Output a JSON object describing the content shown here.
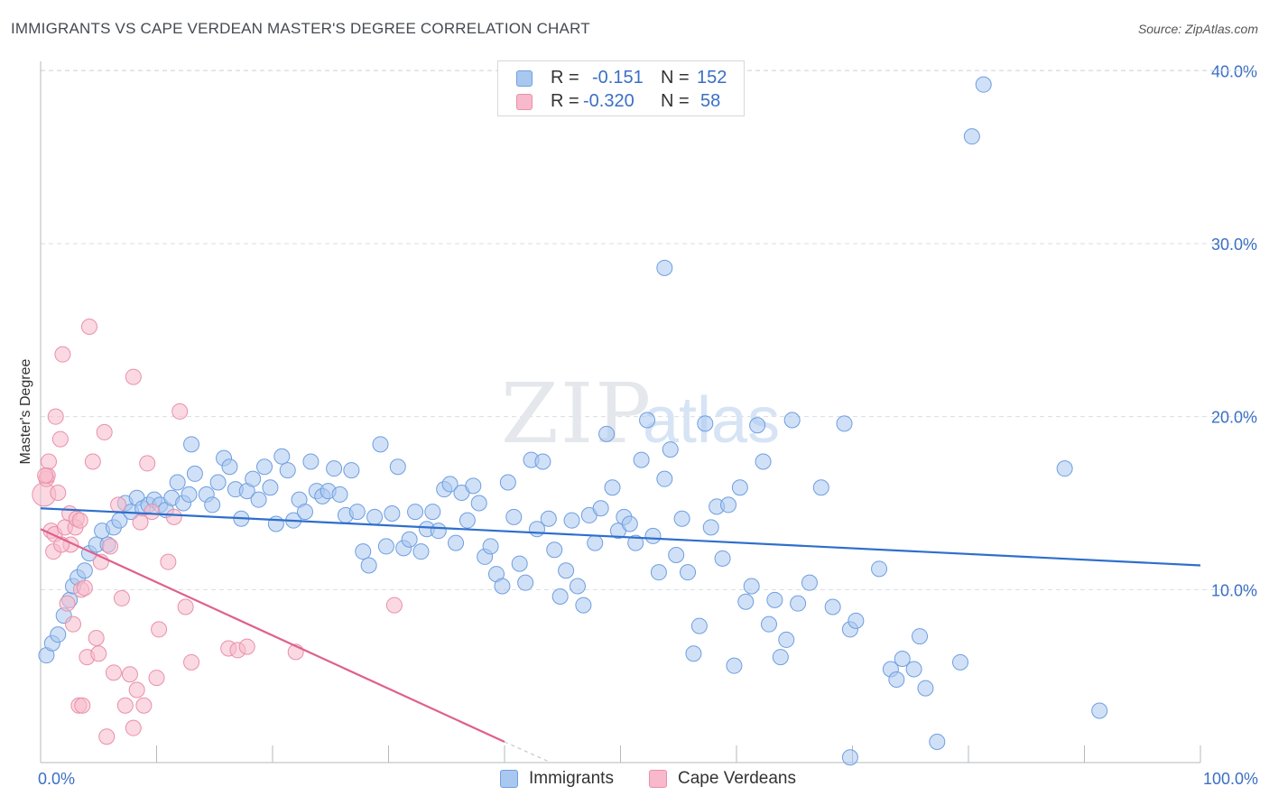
{
  "title": "IMMIGRANTS VS CAPE VERDEAN MASTER'S DEGREE CORRELATION CHART",
  "source": "Source: ZipAtlas.com",
  "watermark_main": "ZIP",
  "watermark_sub": "atlas",
  "colors": {
    "immigrants_fill": "#a9c8f0",
    "immigrants_stroke": "#6f9ee0",
    "immigrants_line": "#2e6fcc",
    "cape_fill": "#f7b9cb",
    "cape_stroke": "#e890aa",
    "cape_line": "#e0608a",
    "tick_label": "#3a6fc4",
    "grid": "#d8dde4"
  },
  "legend": {
    "r_label": "R =",
    "n_label": "N =",
    "immigrants_r": "-0.151",
    "immigrants_n": "152",
    "cape_r": "-0.320",
    "cape_n": "58"
  },
  "bottom_legend": {
    "immigrants": "Immigrants",
    "cape": "Cape Verdeans"
  },
  "chart_data": {
    "type": "scatter",
    "title": "IMMIGRANTS VS CAPE VERDEAN MASTER'S DEGREE CORRELATION CHART",
    "xlabel": "",
    "ylabel": "Master's Degree",
    "xlim": [
      0,
      100
    ],
    "ylim": [
      0,
      42
    ],
    "x_tick_labels": [
      "0.0%",
      "100.0%"
    ],
    "y_ticks": [
      10,
      20,
      30,
      40
    ],
    "y_tick_labels": [
      "10.0%",
      "20.0%",
      "30.0%",
      "40.0%"
    ],
    "grid": true,
    "series": [
      {
        "name": "Immigrants",
        "r": -0.151,
        "n": 152,
        "trend": {
          "x": [
            0,
            100
          ],
          "y": [
            14.7,
            11.4
          ]
        },
        "points": [
          [
            0.5,
            6.2
          ],
          [
            1.0,
            6.9
          ],
          [
            1.5,
            7.4
          ],
          [
            2.0,
            8.5
          ],
          [
            2.5,
            9.4
          ],
          [
            2.8,
            10.2
          ],
          [
            3.2,
            10.7
          ],
          [
            3.8,
            11.1
          ],
          [
            4.2,
            12.1
          ],
          [
            4.8,
            12.6
          ],
          [
            5.3,
            13.4
          ],
          [
            5.8,
            12.6
          ],
          [
            6.3,
            13.6
          ],
          [
            6.8,
            14.0
          ],
          [
            7.3,
            15.0
          ],
          [
            7.8,
            14.5
          ],
          [
            8.3,
            15.3
          ],
          [
            8.8,
            14.7
          ],
          [
            9.3,
            14.9
          ],
          [
            9.8,
            15.2
          ],
          [
            10.3,
            14.9
          ],
          [
            10.8,
            14.6
          ],
          [
            11.3,
            15.3
          ],
          [
            11.8,
            16.2
          ],
          [
            12.3,
            15.0
          ],
          [
            12.8,
            15.5
          ],
          [
            13.3,
            16.7
          ],
          [
            13.0,
            18.4
          ],
          [
            14.3,
            15.5
          ],
          [
            14.8,
            14.9
          ],
          [
            15.3,
            16.2
          ],
          [
            15.8,
            17.6
          ],
          [
            16.3,
            17.1
          ],
          [
            16.8,
            15.8
          ],
          [
            17.3,
            14.1
          ],
          [
            17.8,
            15.7
          ],
          [
            18.3,
            16.4
          ],
          [
            18.8,
            15.2
          ],
          [
            19.3,
            17.1
          ],
          [
            19.8,
            15.9
          ],
          [
            20.3,
            13.8
          ],
          [
            20.8,
            17.7
          ],
          [
            21.3,
            16.9
          ],
          [
            21.8,
            14.0
          ],
          [
            22.3,
            15.2
          ],
          [
            22.8,
            14.5
          ],
          [
            23.3,
            17.4
          ],
          [
            23.8,
            15.7
          ],
          [
            24.3,
            15.4
          ],
          [
            24.8,
            15.7
          ],
          [
            25.3,
            17.0
          ],
          [
            25.8,
            15.5
          ],
          [
            26.3,
            14.3
          ],
          [
            26.8,
            16.9
          ],
          [
            27.3,
            14.5
          ],
          [
            27.8,
            12.2
          ],
          [
            28.3,
            11.4
          ],
          [
            28.8,
            14.2
          ],
          [
            29.3,
            18.4
          ],
          [
            29.8,
            12.5
          ],
          [
            30.3,
            14.4
          ],
          [
            30.8,
            17.1
          ],
          [
            31.3,
            12.4
          ],
          [
            31.8,
            12.9
          ],
          [
            32.3,
            14.5
          ],
          [
            32.8,
            12.2
          ],
          [
            33.3,
            13.5
          ],
          [
            33.8,
            14.5
          ],
          [
            34.3,
            13.4
          ],
          [
            34.8,
            15.8
          ],
          [
            35.3,
            16.1
          ],
          [
            35.8,
            12.7
          ],
          [
            36.3,
            15.6
          ],
          [
            36.8,
            14.0
          ],
          [
            37.3,
            16.0
          ],
          [
            37.8,
            15.0
          ],
          [
            38.3,
            11.9
          ],
          [
            38.8,
            12.5
          ],
          [
            39.3,
            10.9
          ],
          [
            39.8,
            10.2
          ],
          [
            40.3,
            16.2
          ],
          [
            40.8,
            14.2
          ],
          [
            41.3,
            11.5
          ],
          [
            41.8,
            10.4
          ],
          [
            42.3,
            17.5
          ],
          [
            42.8,
            13.5
          ],
          [
            43.3,
            17.4
          ],
          [
            43.8,
            14.1
          ],
          [
            44.3,
            12.3
          ],
          [
            44.8,
            9.6
          ],
          [
            45.3,
            11.1
          ],
          [
            45.8,
            14.0
          ],
          [
            46.3,
            10.2
          ],
          [
            46.8,
            9.1
          ],
          [
            47.3,
            14.3
          ],
          [
            47.8,
            12.7
          ],
          [
            48.3,
            14.7
          ],
          [
            48.8,
            19.0
          ],
          [
            49.3,
            15.9
          ],
          [
            49.8,
            13.4
          ],
          [
            50.3,
            14.2
          ],
          [
            50.8,
            13.8
          ],
          [
            51.3,
            12.7
          ],
          [
            51.8,
            17.5
          ],
          [
            52.3,
            19.8
          ],
          [
            52.8,
            13.1
          ],
          [
            53.3,
            11.0
          ],
          [
            53.8,
            16.4
          ],
          [
            54.3,
            18.1
          ],
          [
            54.8,
            12.0
          ],
          [
            55.3,
            14.1
          ],
          [
            55.8,
            11.0
          ],
          [
            56.3,
            6.3
          ],
          [
            56.8,
            7.9
          ],
          [
            57.3,
            19.6
          ],
          [
            57.8,
            13.6
          ],
          [
            58.3,
            14.8
          ],
          [
            58.8,
            11.8
          ],
          [
            59.3,
            14.9
          ],
          [
            59.8,
            5.6
          ],
          [
            60.3,
            15.9
          ],
          [
            60.8,
            9.3
          ],
          [
            61.3,
            10.2
          ],
          [
            61.8,
            19.5
          ],
          [
            62.3,
            17.4
          ],
          [
            62.8,
            8.0
          ],
          [
            63.3,
            9.4
          ],
          [
            63.8,
            6.1
          ],
          [
            64.3,
            7.1
          ],
          [
            64.8,
            19.8
          ],
          [
            65.3,
            9.2
          ],
          [
            66.3,
            10.4
          ],
          [
            67.3,
            15.9
          ],
          [
            68.3,
            9.0
          ],
          [
            69.3,
            19.6
          ],
          [
            69.8,
            7.7
          ],
          [
            70.3,
            8.2
          ],
          [
            72.3,
            11.2
          ],
          [
            73.3,
            5.4
          ],
          [
            73.8,
            4.8
          ],
          [
            74.3,
            6.0
          ],
          [
            75.3,
            5.4
          ],
          [
            75.8,
            7.3
          ],
          [
            76.3,
            4.3
          ],
          [
            77.3,
            1.2
          ],
          [
            79.3,
            5.8
          ],
          [
            80.3,
            36.2
          ],
          [
            81.3,
            39.2
          ],
          [
            88.3,
            17.0
          ],
          [
            91.3,
            3.0
          ],
          [
            53.8,
            28.6
          ],
          [
            69.8,
            0.3
          ]
        ]
      },
      {
        "name": "Cape Verdeans",
        "r": -0.32,
        "n": 58,
        "trend": {
          "x": [
            0,
            40
          ],
          "y": [
            13.5,
            1.2
          ]
        },
        "trend_dashed": {
          "x": [
            40,
            44
          ],
          "y": [
            1.2,
            0.0
          ]
        },
        "points": [
          [
            0.3,
            15.5
          ],
          [
            0.5,
            16.4
          ],
          [
            0.6,
            16.6
          ],
          [
            0.7,
            17.4
          ],
          [
            0.9,
            13.4
          ],
          [
            1.1,
            12.2
          ],
          [
            1.2,
            13.2
          ],
          [
            1.3,
            20.0
          ],
          [
            1.5,
            15.6
          ],
          [
            1.7,
            18.7
          ],
          [
            1.9,
            23.6
          ],
          [
            2.1,
            13.6
          ],
          [
            2.3,
            9.2
          ],
          [
            2.5,
            14.4
          ],
          [
            2.6,
            12.6
          ],
          [
            2.8,
            8.0
          ],
          [
            3.0,
            13.6
          ],
          [
            3.1,
            14.1
          ],
          [
            3.3,
            3.3
          ],
          [
            3.5,
            10.0
          ],
          [
            3.6,
            3.3
          ],
          [
            3.8,
            10.1
          ],
          [
            4.0,
            6.1
          ],
          [
            4.2,
            25.2
          ],
          [
            4.5,
            17.4
          ],
          [
            4.8,
            7.2
          ],
          [
            5.0,
            6.3
          ],
          [
            5.2,
            11.6
          ],
          [
            5.5,
            19.1
          ],
          [
            5.7,
            1.5
          ],
          [
            6.0,
            12.5
          ],
          [
            6.3,
            5.2
          ],
          [
            6.7,
            14.9
          ],
          [
            7.0,
            9.5
          ],
          [
            7.3,
            3.3
          ],
          [
            7.7,
            5.1
          ],
          [
            8.0,
            22.3
          ],
          [
            8.0,
            2.0
          ],
          [
            8.3,
            4.2
          ],
          [
            8.6,
            13.9
          ],
          [
            8.9,
            3.3
          ],
          [
            9.2,
            17.3
          ],
          [
            9.6,
            14.5
          ],
          [
            10.0,
            4.9
          ],
          [
            10.2,
            7.7
          ],
          [
            11.0,
            11.6
          ],
          [
            11.5,
            14.2
          ],
          [
            12.0,
            20.3
          ],
          [
            12.5,
            9.0
          ],
          [
            13.0,
            5.8
          ],
          [
            16.2,
            6.6
          ],
          [
            17.0,
            6.5
          ],
          [
            17.8,
            6.7
          ],
          [
            22.0,
            6.4
          ],
          [
            30.5,
            9.1
          ],
          [
            0.4,
            16.6
          ],
          [
            1.8,
            12.6
          ],
          [
            3.4,
            14.0
          ]
        ]
      }
    ]
  }
}
